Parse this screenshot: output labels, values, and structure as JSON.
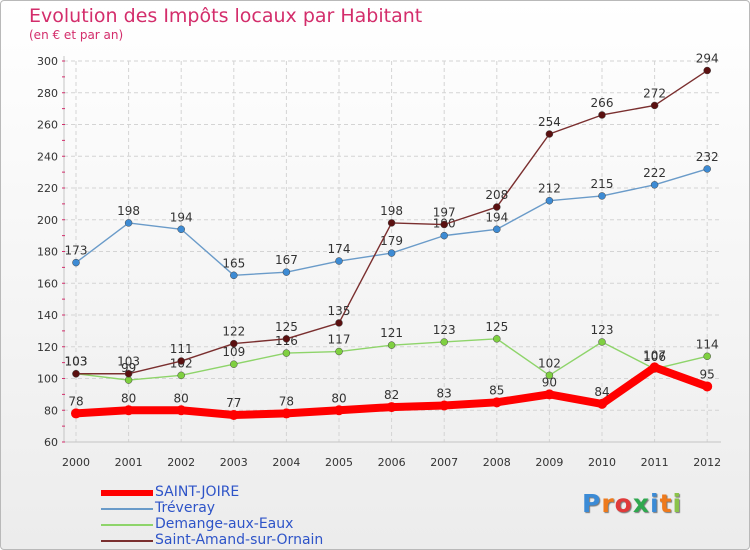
{
  "title": "Evolution des Impôts locaux par Habitant",
  "subtitle": "(en € et par an)",
  "logo": {
    "letters": [
      "P",
      "r",
      "o",
      "x",
      "i",
      "t",
      "i"
    ],
    "colors": [
      "#3b8bd6",
      "#ee7a1c",
      "#e03a3a",
      "#2fa84f",
      "#3b8bd6",
      "#ee7a1c",
      "#8bc34a"
    ]
  },
  "chart_data": {
    "type": "line",
    "categories": [
      "2000",
      "2001",
      "2002",
      "2003",
      "2004",
      "2005",
      "2006",
      "2007",
      "2008",
      "2009",
      "2010",
      "2011",
      "2012"
    ],
    "ylim": [
      60,
      300
    ],
    "yticks": [
      "60",
      "80",
      "100",
      "120",
      "140",
      "160",
      "180",
      "200",
      "220",
      "240",
      "260",
      "280",
      "300"
    ],
    "grid": true,
    "legend_position": "bottom-left",
    "series": [
      {
        "name": "SAINT-JOIRE",
        "values": [
          78,
          80,
          80,
          77,
          78,
          80,
          82,
          83,
          85,
          90,
          84,
          107,
          95
        ],
        "color": "#ff0000",
        "marker": "#ff0000"
      },
      {
        "name": "Tréveray",
        "values": [
          173,
          198,
          194,
          165,
          167,
          174,
          179,
          190,
          194,
          212,
          215,
          222,
          232
        ],
        "color": "#6a9bc9",
        "marker": "#3d8bd4"
      },
      {
        "name": "Demange-aux-Eaux",
        "values": [
          103,
          99,
          102,
          109,
          116,
          117,
          121,
          123,
          125,
          102,
          123,
          106,
          114
        ],
        "color": "#8ed46a",
        "marker": "#7fd040"
      },
      {
        "name": "Saint-Amand-sur-Ornain",
        "values": [
          103,
          103,
          111,
          122,
          125,
          135,
          198,
          197,
          208,
          254,
          266,
          272,
          294
        ],
        "color": "#7a2f2f",
        "marker": "#5a1010"
      }
    ]
  }
}
